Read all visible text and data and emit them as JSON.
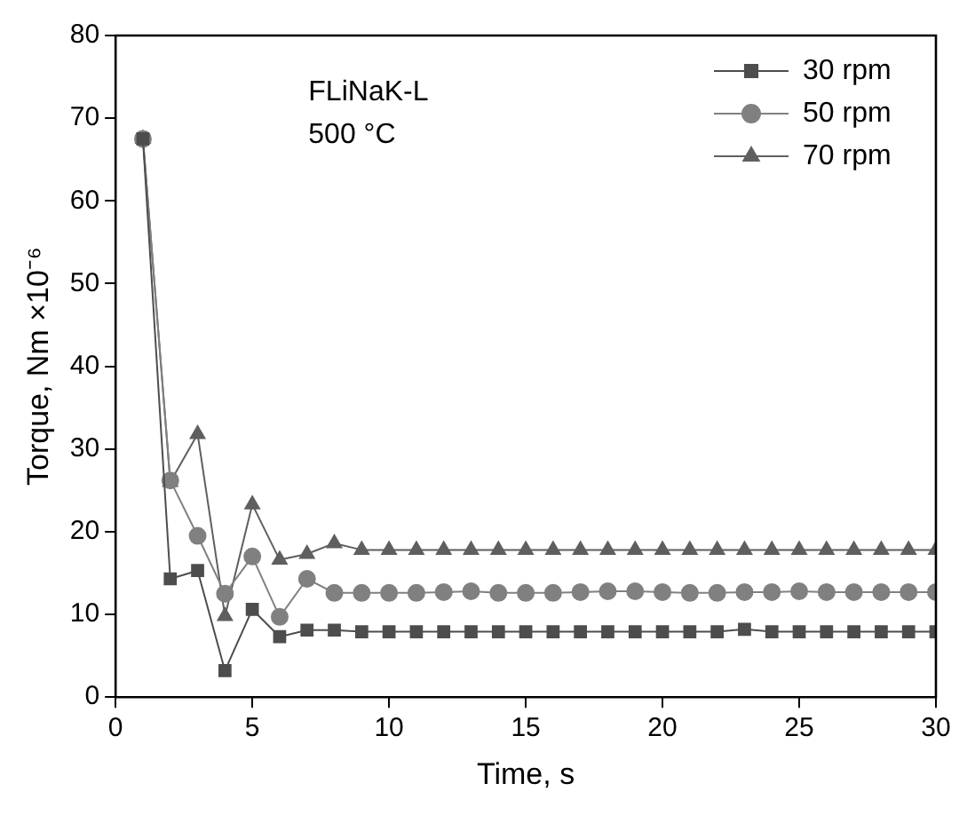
{
  "chart_data": {
    "type": "line",
    "xlabel": "Time, s",
    "ylabel": "Torque, Nm ×10⁻⁶",
    "annotations": [
      "FLiNaK-L",
      "500 °C"
    ],
    "x": [
      1,
      2,
      3,
      4,
      5,
      6,
      7,
      8,
      9,
      10,
      11,
      12,
      13,
      14,
      15,
      16,
      17,
      18,
      19,
      20,
      21,
      22,
      23,
      24,
      25,
      26,
      27,
      28,
      29,
      30
    ],
    "series": [
      {
        "name": "30 rpm",
        "color": "#4d4d4d",
        "marker": "square",
        "values": [
          67.5,
          14.3,
          15.3,
          3.2,
          10.6,
          7.3,
          8.1,
          8.1,
          7.9,
          7.9,
          7.9,
          7.9,
          7.9,
          7.9,
          7.9,
          7.9,
          7.9,
          7.9,
          7.9,
          7.9,
          7.9,
          7.9,
          8.2,
          7.9,
          7.9,
          7.9,
          7.9,
          7.9,
          7.9,
          7.9
        ]
      },
      {
        "name": "50 rpm",
        "color": "#808080",
        "marker": "circle",
        "values": [
          67.5,
          26.2,
          19.5,
          12.5,
          17.0,
          9.7,
          14.3,
          12.6,
          12.6,
          12.6,
          12.6,
          12.7,
          12.8,
          12.6,
          12.6,
          12.6,
          12.7,
          12.8,
          12.8,
          12.7,
          12.6,
          12.6,
          12.7,
          12.7,
          12.8,
          12.7,
          12.7,
          12.7,
          12.7,
          12.7
        ]
      },
      {
        "name": "70 rpm",
        "color": "#5f5f5f",
        "marker": "triangle",
        "values": [
          67.5,
          26.0,
          31.8,
          9.8,
          23.3,
          16.6,
          17.3,
          18.6,
          17.8,
          17.8,
          17.8,
          17.8,
          17.8,
          17.8,
          17.8,
          17.8,
          17.8,
          17.8,
          17.8,
          17.8,
          17.8,
          17.8,
          17.8,
          17.8,
          17.8,
          17.8,
          17.8,
          17.8,
          17.8,
          17.8
        ]
      }
    ],
    "xlim": [
      0,
      30
    ],
    "xticks": [
      0,
      5,
      10,
      15,
      20,
      25,
      30
    ],
    "ylim": [
      0,
      80
    ],
    "yticks": [
      0,
      10,
      20,
      30,
      40,
      50,
      60,
      70,
      80
    ],
    "grid": false,
    "legend": "top right",
    "line_style": "solid"
  }
}
